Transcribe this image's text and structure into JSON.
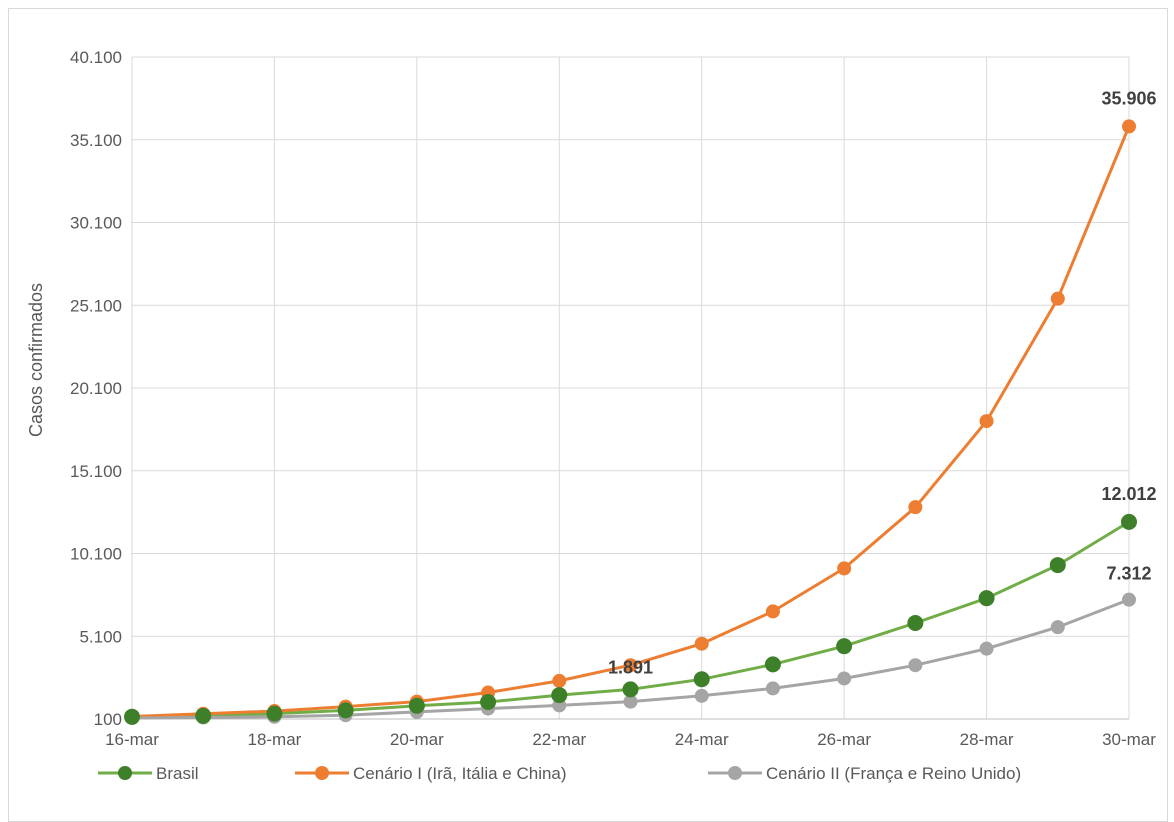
{
  "chart_data": {
    "type": "line",
    "title": "",
    "xlabel": "",
    "ylabel": "Casos confirmados",
    "categories": [
      "16-mar",
      "17-mar",
      "18-mar",
      "19-mar",
      "20-mar",
      "21-mar",
      "22-mar",
      "23-mar",
      "24-mar",
      "25-mar",
      "26-mar",
      "27-mar",
      "28-mar",
      "29-mar",
      "30-mar"
    ],
    "x_tick_labels": [
      "16-mar",
      "18-mar",
      "20-mar",
      "22-mar",
      "24-mar",
      "26-mar",
      "28-mar",
      "30-mar"
    ],
    "y_tick_labels": [
      "100",
      "5.100",
      "10.100",
      "15.100",
      "20.100",
      "25.100",
      "30.100",
      "35.100",
      "40.100"
    ],
    "ylim": [
      100,
      40100
    ],
    "grid": true,
    "legend_position": "bottom",
    "series": [
      {
        "name": "Brasil",
        "color": "#70ad47",
        "marker_color": "#3e7f2a",
        "values": [
          234,
          291,
          428,
          621,
          904,
          1128,
          1546,
          1891,
          2500,
          3400,
          4500,
          5900,
          7400,
          9400,
          12012
        ]
      },
      {
        "name": "Cenário I (Irã, Itália e China)",
        "color": "#ed7d31",
        "marker_color": "#ed7d31",
        "values": [
          250,
          420,
          580,
          850,
          1150,
          1700,
          2400,
          3350,
          4650,
          6600,
          9200,
          12900,
          18100,
          25500,
          35906
        ]
      },
      {
        "name": "Cenário II (França e Reino Unido)",
        "color": "#a5a5a5",
        "marker_color": "#a5a5a5",
        "values": [
          160,
          190,
          230,
          330,
          530,
          730,
          920,
          1150,
          1500,
          1950,
          2550,
          3350,
          4350,
          5650,
          7312
        ]
      }
    ],
    "data_labels": [
      {
        "series": 0,
        "index": 7,
        "text": "1.891"
      },
      {
        "series": 0,
        "index": 14,
        "text": "12.012"
      },
      {
        "series": 1,
        "index": 14,
        "text": "35.906"
      },
      {
        "series": 2,
        "index": 14,
        "text": "7.312"
      }
    ]
  }
}
